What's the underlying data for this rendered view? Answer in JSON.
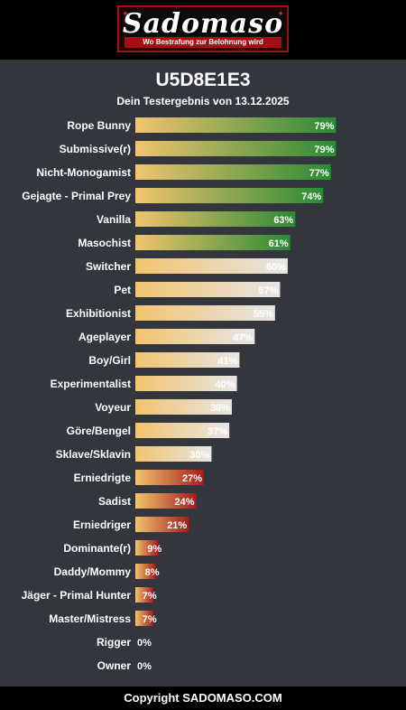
{
  "header": {
    "logo_title": "Sadomaso",
    "logo_subtitle": "Wo Bestrafung zur Belohnung wird"
  },
  "result": {
    "title": "U5D8E1E3",
    "subtitle": "Dein Testergebnis von 13.12.2025"
  },
  "footer": {
    "text": "Copyright SADOMASO.COM"
  },
  "colors": {
    "bar_start": "#f2c46e",
    "high_end": "#2a8a35",
    "mid_end": "#e6e6e6",
    "low_end": "#a61c1c",
    "background": "#33373d"
  },
  "chart_data": {
    "type": "bar",
    "orientation": "horizontal",
    "xlim": [
      0,
      100
    ],
    "unit": "%",
    "categories": [
      "Rope Bunny",
      "Submissive(r)",
      "Nicht-Monogamist",
      "Gejagte - Primal Prey",
      "Vanilla",
      "Masochist",
      "Switcher",
      "Pet",
      "Exhibitionist",
      "Ageplayer",
      "Boy/Girl",
      "Experimentalist",
      "Voyeur",
      "Göre/Bengel",
      "Sklave/Sklavin",
      "Erniedrigte",
      "Sadist",
      "Erniedriger",
      "Dominante(r)",
      "Daddy/Mommy",
      "Jäger - Primal Hunter",
      "Master/Mistress",
      "Rigger",
      "Owner"
    ],
    "values": [
      79,
      79,
      77,
      74,
      63,
      61,
      60,
      57,
      55,
      47,
      41,
      40,
      38,
      37,
      30,
      27,
      24,
      21,
      9,
      8,
      7,
      7,
      0,
      0
    ],
    "value_labels": [
      "79%",
      "79%",
      "77%",
      "74%",
      "63%",
      "61%",
      "60%",
      "57%",
      "55%",
      "47%",
      "41%",
      "40%",
      "38%",
      "37%",
      "30%",
      "27%",
      "24%",
      "21%",
      "9%",
      "8%",
      "7%",
      "7%",
      "0%",
      "0%"
    ],
    "color_groups": [
      "high",
      "high",
      "high",
      "high",
      "high",
      "high",
      "mid",
      "mid",
      "mid",
      "mid",
      "mid",
      "mid",
      "mid",
      "mid",
      "mid",
      "low",
      "low",
      "low",
      "low",
      "low",
      "low",
      "low",
      "low",
      "low"
    ]
  }
}
